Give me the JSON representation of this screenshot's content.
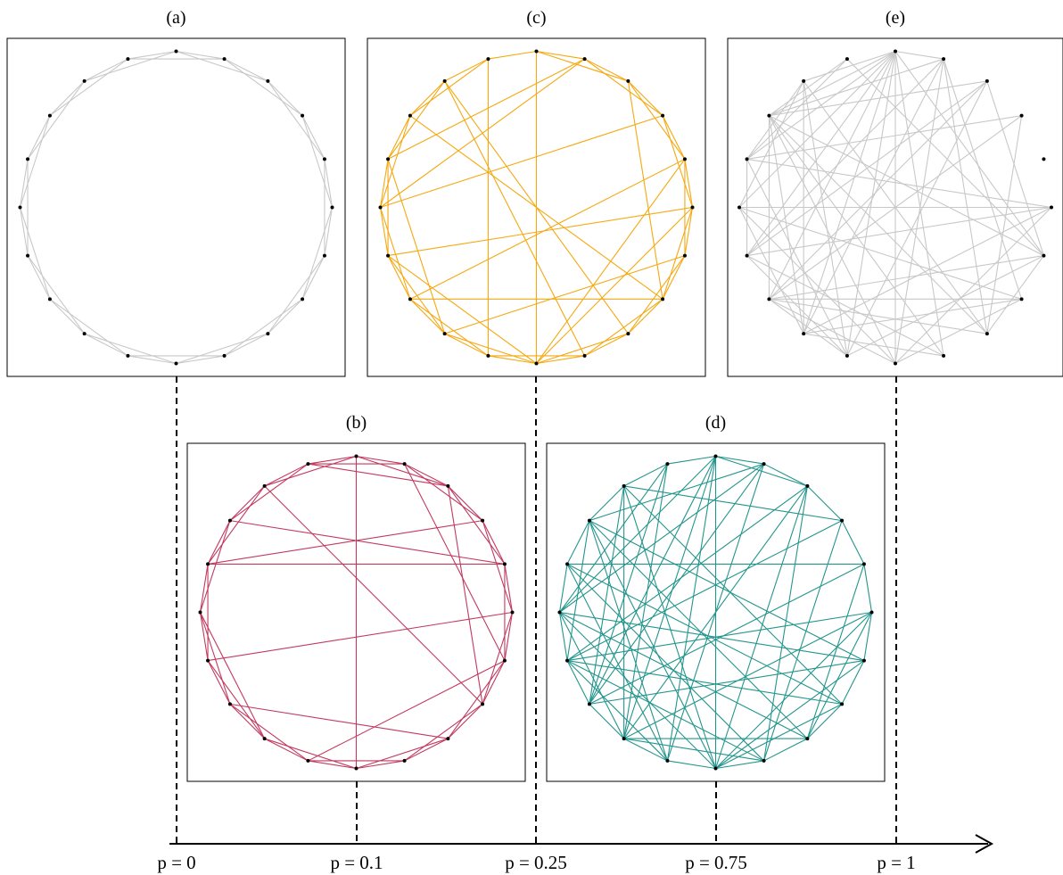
{
  "panels": [
    {
      "label": "(a)",
      "p": 0,
      "edge_color": "#c8c8c8",
      "edges": [
        [
          0,
          1
        ],
        [
          0,
          2
        ],
        [
          0,
          18
        ],
        [
          0,
          19
        ],
        [
          1,
          2
        ],
        [
          1,
          3
        ],
        [
          1,
          19
        ],
        [
          2,
          3
        ],
        [
          2,
          4
        ],
        [
          3,
          4
        ],
        [
          3,
          5
        ],
        [
          4,
          5
        ],
        [
          4,
          6
        ],
        [
          5,
          6
        ],
        [
          5,
          7
        ],
        [
          6,
          7
        ],
        [
          6,
          8
        ],
        [
          7,
          8
        ],
        [
          7,
          9
        ],
        [
          8,
          9
        ],
        [
          8,
          10
        ],
        [
          9,
          10
        ],
        [
          9,
          11
        ],
        [
          10,
          11
        ],
        [
          10,
          12
        ],
        [
          11,
          12
        ],
        [
          11,
          13
        ],
        [
          12,
          13
        ],
        [
          12,
          14
        ],
        [
          13,
          14
        ],
        [
          13,
          15
        ],
        [
          14,
          15
        ],
        [
          14,
          16
        ],
        [
          15,
          16
        ],
        [
          15,
          17
        ],
        [
          16,
          17
        ],
        [
          16,
          18
        ],
        [
          17,
          18
        ],
        [
          17,
          19
        ],
        [
          18,
          19
        ]
      ]
    },
    {
      "label": "(b)",
      "p": 0.1,
      "edge_color": "#c2395f",
      "edges": [
        [
          0,
          1
        ],
        [
          0,
          2
        ],
        [
          0,
          19
        ],
        [
          1,
          2
        ],
        [
          1,
          3
        ],
        [
          1,
          19
        ],
        [
          2,
          3
        ],
        [
          2,
          4
        ],
        [
          3,
          4
        ],
        [
          3,
          5
        ],
        [
          4,
          5
        ],
        [
          4,
          6
        ],
        [
          5,
          6
        ],
        [
          5,
          7
        ],
        [
          6,
          7
        ],
        [
          6,
          8
        ],
        [
          7,
          8
        ],
        [
          7,
          9
        ],
        [
          8,
          9
        ],
        [
          8,
          10
        ],
        [
          9,
          10
        ],
        [
          9,
          11
        ],
        [
          10,
          11
        ],
        [
          10,
          12
        ],
        [
          11,
          12
        ],
        [
          11,
          13
        ],
        [
          12,
          13
        ],
        [
          12,
          14
        ],
        [
          13,
          14
        ],
        [
          13,
          15
        ],
        [
          14,
          15
        ],
        [
          14,
          16
        ],
        [
          15,
          16
        ],
        [
          15,
          17
        ],
        [
          16,
          17
        ],
        [
          16,
          18
        ],
        [
          17,
          18
        ],
        [
          17,
          19
        ],
        [
          18,
          19
        ],
        [
          18,
          0
        ],
        [
          0,
          10
        ],
        [
          18,
          7
        ],
        [
          2,
          19
        ],
        [
          16,
          3
        ],
        [
          17,
          4
        ],
        [
          7,
          2
        ],
        [
          11,
          6
        ],
        [
          5,
          14
        ],
        [
          13,
          8
        ],
        [
          4,
          16
        ],
        [
          15,
          12
        ],
        [
          6,
          1
        ]
      ]
    },
    {
      "label": "(c)",
      "p": 0.25,
      "edge_color": "#f5a810",
      "edges": [
        [
          0,
          1
        ],
        [
          0,
          2
        ],
        [
          0,
          19
        ],
        [
          1,
          2
        ],
        [
          1,
          3
        ],
        [
          2,
          3
        ],
        [
          2,
          4
        ],
        [
          3,
          4
        ],
        [
          3,
          5
        ],
        [
          4,
          5
        ],
        [
          4,
          6
        ],
        [
          5,
          6
        ],
        [
          5,
          7
        ],
        [
          6,
          7
        ],
        [
          6,
          8
        ],
        [
          7,
          8
        ],
        [
          7,
          9
        ],
        [
          8,
          9
        ],
        [
          8,
          10
        ],
        [
          9,
          10
        ],
        [
          9,
          11
        ],
        [
          10,
          11
        ],
        [
          10,
          12
        ],
        [
          11,
          12
        ],
        [
          11,
          13
        ],
        [
          12,
          13
        ],
        [
          12,
          14
        ],
        [
          13,
          14
        ],
        [
          13,
          15
        ],
        [
          14,
          15
        ],
        [
          14,
          16
        ],
        [
          15,
          16
        ],
        [
          15,
          17
        ],
        [
          16,
          17
        ],
        [
          16,
          18
        ],
        [
          17,
          18
        ],
        [
          17,
          19
        ],
        [
          18,
          19
        ],
        [
          0,
          10
        ],
        [
          4,
          13
        ],
        [
          7,
          2
        ],
        [
          1,
          16
        ],
        [
          3,
          15
        ],
        [
          5,
          14
        ],
        [
          6,
          12
        ],
        [
          11,
          19
        ],
        [
          18,
          9
        ],
        [
          10,
          4
        ],
        [
          5,
          10
        ],
        [
          13,
          7
        ],
        [
          18,
          8
        ],
        [
          14,
          10
        ],
        [
          17,
          7
        ],
        [
          16,
          12
        ],
        [
          15,
          1
        ]
      ]
    },
    {
      "label": "(d)",
      "p": 0.75,
      "edge_color": "#23958c",
      "edges": [
        [
          0,
          1
        ],
        [
          0,
          2
        ],
        [
          0,
          19
        ],
        [
          1,
          2
        ],
        [
          2,
          3
        ],
        [
          3,
          4
        ],
        [
          4,
          5
        ],
        [
          5,
          6
        ],
        [
          6,
          7
        ],
        [
          7,
          8
        ],
        [
          8,
          9
        ],
        [
          9,
          10
        ],
        [
          10,
          11
        ],
        [
          11,
          12
        ],
        [
          12,
          13
        ],
        [
          13,
          14
        ],
        [
          14,
          15
        ],
        [
          15,
          16
        ],
        [
          16,
          17
        ],
        [
          17,
          18
        ],
        [
          18,
          19
        ],
        [
          0,
          10
        ],
        [
          0,
          11
        ],
        [
          0,
          12
        ],
        [
          0,
          13
        ],
        [
          0,
          15
        ],
        [
          1,
          11
        ],
        [
          1,
          13
        ],
        [
          1,
          15
        ],
        [
          1,
          17
        ],
        [
          2,
          10
        ],
        [
          2,
          12
        ],
        [
          2,
          14
        ],
        [
          2,
          9
        ],
        [
          3,
          14
        ],
        [
          3,
          18
        ],
        [
          3,
          9
        ],
        [
          4,
          13
        ],
        [
          4,
          16
        ],
        [
          4,
          8
        ],
        [
          5,
          12
        ],
        [
          5,
          14
        ],
        [
          5,
          8
        ],
        [
          5,
          10
        ],
        [
          6,
          13
        ],
        [
          6,
          15
        ],
        [
          6,
          17
        ],
        [
          6,
          10
        ],
        [
          7,
          14
        ],
        [
          7,
          16
        ],
        [
          7,
          18
        ],
        [
          7,
          10
        ],
        [
          8,
          15
        ],
        [
          8,
          17
        ],
        [
          8,
          12
        ],
        [
          9,
          12
        ],
        [
          9,
          14
        ],
        [
          9,
          16
        ],
        [
          10,
          15
        ],
        [
          10,
          17
        ],
        [
          10,
          18
        ],
        [
          11,
          14
        ],
        [
          11,
          16
        ],
        [
          11,
          17
        ],
        [
          12,
          15
        ],
        [
          12,
          19
        ],
        [
          12,
          18
        ],
        [
          13,
          18
        ],
        [
          13,
          19
        ],
        [
          14,
          17
        ],
        [
          15,
          19
        ]
      ]
    },
    {
      "label": "(e)",
      "p": 1,
      "edge_color": "#c8c8c8",
      "edges": [
        [
          0,
          1
        ],
        [
          0,
          9
        ],
        [
          0,
          10
        ],
        [
          0,
          11
        ],
        [
          0,
          12
        ],
        [
          0,
          13
        ],
        [
          0,
          14
        ],
        [
          0,
          15
        ],
        [
          0,
          16
        ],
        [
          0,
          17
        ],
        [
          0,
          18
        ],
        [
          0,
          6
        ],
        [
          1,
          10
        ],
        [
          1,
          12
        ],
        [
          1,
          14
        ],
        [
          1,
          7
        ],
        [
          1,
          8
        ],
        [
          1,
          17
        ],
        [
          2,
          6
        ],
        [
          2,
          11
        ],
        [
          2,
          13
        ],
        [
          2,
          14
        ],
        [
          2,
          17
        ],
        [
          3,
          8
        ],
        [
          3,
          16
        ],
        [
          5,
          10
        ],
        [
          5,
          12
        ],
        [
          5,
          16
        ],
        [
          5,
          14
        ],
        [
          5,
          15
        ],
        [
          6,
          8
        ],
        [
          6,
          11
        ],
        [
          6,
          13
        ],
        [
          6,
          17
        ],
        [
          6,
          19
        ],
        [
          7,
          10
        ],
        [
          7,
          12
        ],
        [
          7,
          15
        ],
        [
          8,
          13
        ],
        [
          8,
          17
        ],
        [
          8,
          18
        ],
        [
          9,
          12
        ],
        [
          9,
          14
        ],
        [
          9,
          17
        ],
        [
          10,
          13
        ],
        [
          10,
          15
        ],
        [
          10,
          17
        ],
        [
          11,
          14
        ],
        [
          11,
          16
        ],
        [
          11,
          18
        ],
        [
          12,
          15
        ],
        [
          12,
          18
        ],
        [
          13,
          17
        ],
        [
          14,
          16
        ],
        [
          15,
          18
        ],
        [
          16,
          18
        ],
        [
          16,
          19
        ],
        [
          17,
          19
        ],
        [
          11,
          13
        ],
        [
          12,
          17
        ],
        [
          7,
          13
        ],
        [
          3,
          13
        ]
      ]
    }
  ],
  "axis": {
    "ticks": [
      "p = 0",
      "p = 0.1",
      "p = 0.25",
      "p = 0.75",
      "p = 1"
    ]
  },
  "colors": {
    "node": "#000000",
    "frame": "#000000",
    "axis": "#000000"
  }
}
